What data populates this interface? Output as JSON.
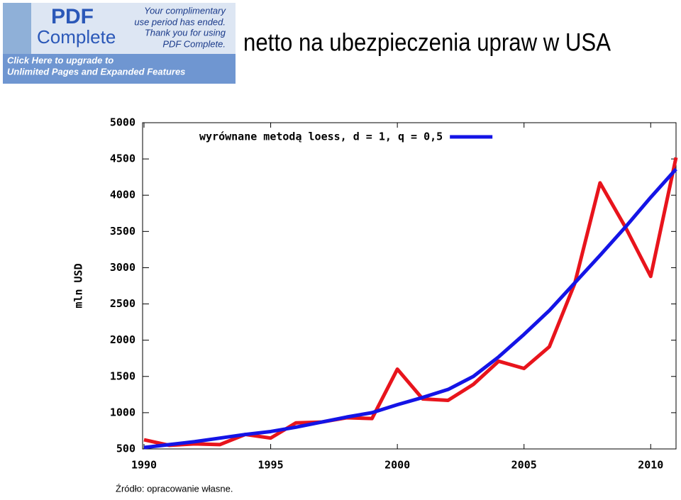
{
  "banner": {
    "logo_pdf": "PDF",
    "logo_complete": "Complete",
    "notice_lines": [
      "Your complimentary",
      "use period has ended.",
      "Thank you for using",
      "PDF Complete."
    ],
    "upgrade_lines": [
      "Click Here to upgrade to",
      "Unlimited Pages and Expanded Features"
    ]
  },
  "chart_data": {
    "type": "line",
    "title": "netto na ubezpieczenia upraw w USA",
    "y_label": "mln USD",
    "source": "Źródło:   opracowanie własne.",
    "legend": "top-left",
    "grid": false,
    "x": [
      1990,
      1991,
      1992,
      1993,
      1994,
      1995,
      1996,
      1997,
      1998,
      1999,
      2000,
      2001,
      2002,
      2003,
      2004,
      2005,
      2006,
      2007,
      2008,
      2009,
      2010,
      2011
    ],
    "series": [
      {
        "color": "#e8141c",
        "values": [
          627,
          550,
          570,
          560,
          700,
          650,
          860,
          870,
          930,
          920,
          1600,
          1190,
          1170,
          1390,
          1710,
          1610,
          1910,
          2780,
          4170,
          3560,
          2880,
          4520
        ]
      },
      {
        "name": "wyrównane metodą loess, d = 1, q = 0,5",
        "color": "#1414e6",
        "values": [
          520,
          560,
          600,
          650,
          700,
          740,
          800,
          870,
          940,
          1000,
          1110,
          1210,
          1320,
          1500,
          1770,
          2080,
          2410,
          2790,
          3170,
          3560,
          3970,
          4360
        ]
      }
    ],
    "xlim": [
      1990,
      2011
    ],
    "xticks": [
      1990,
      1995,
      2000,
      2005,
      2010
    ],
    "ylim": [
      500,
      5000
    ],
    "yticks": [
      500,
      1000,
      1500,
      2000,
      2500,
      3000,
      3500,
      4000,
      4500,
      5000
    ]
  }
}
